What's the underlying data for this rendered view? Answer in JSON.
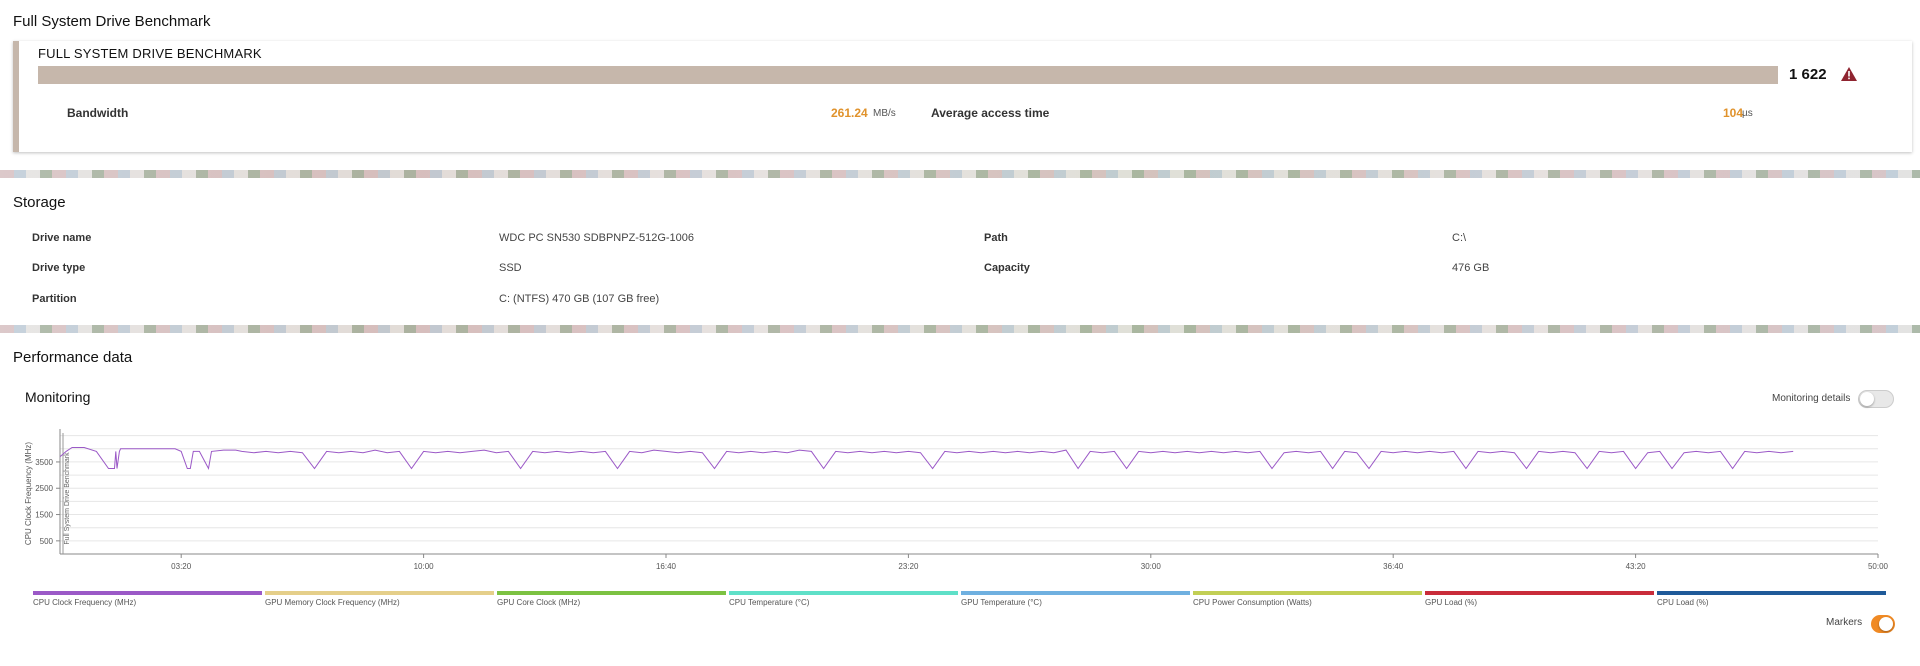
{
  "benchmark_section": {
    "title": "Full System Drive Benchmark",
    "card_title": "FULL SYSTEM DRIVE BENCHMARK",
    "score": "1 622",
    "bandwidth_label": "Bandwidth",
    "bandwidth_value": "261.24",
    "bandwidth_unit": "MB/s",
    "access_label": "Average access time",
    "access_value": "104",
    "access_unit": "µs",
    "warning_icon": "warning-triangle-icon",
    "accent_color": "#e0922b",
    "bar_color": "#c6b7ab"
  },
  "storage": {
    "title": "Storage",
    "rows": [
      {
        "label": "Drive name",
        "value": "WDC PC SN530 SDBPNPZ-512G-1006"
      },
      {
        "label": "Drive type",
        "value": "SSD"
      },
      {
        "label": "Partition",
        "value": "C: (NTFS) 470 GB (107 GB free)"
      },
      {
        "label": "Path",
        "value": "C:\\"
      },
      {
        "label": "Capacity",
        "value": "476 GB"
      }
    ]
  },
  "performance": {
    "title": "Performance data",
    "monitoring_title": "Monitoring",
    "monitoring_details_label": "Monitoring details",
    "monitoring_details_on": false,
    "markers_label": "Markers",
    "markers_on": true
  },
  "chart_data": {
    "type": "line",
    "ylabel": "CPU Clock Frequency (MHz)",
    "marker_label": "Full System Drive Benchmark",
    "y_ticks": [
      "500",
      "1500",
      "2500",
      "3500"
    ],
    "ylim": [
      0,
      4600
    ],
    "x_ticks": [
      "03:20",
      "10:00",
      "16:40",
      "23:20",
      "30:00",
      "36:40",
      "43:20",
      "50:00"
    ],
    "xlim_seconds": [
      0,
      3000
    ],
    "series": [
      {
        "name": "CPU Clock Frequency (MHz)",
        "color": "#9b59c7",
        "x": [
          0,
          10,
          20,
          40,
          60,
          80,
          90,
          92,
          94,
          98,
          100,
          110,
          130,
          150,
          170,
          190,
          200,
          210,
          215,
          220,
          230,
          245,
          250,
          270,
          290,
          300,
          320,
          340,
          360,
          380,
          400,
          420,
          440,
          460,
          480,
          500,
          520,
          540,
          560,
          580,
          600,
          620,
          640,
          660,
          680,
          700,
          720,
          740,
          760,
          780,
          800,
          820,
          840,
          860,
          880,
          900,
          920,
          940,
          960,
          980,
          1000,
          1020,
          1040,
          1060,
          1080,
          1100,
          1120,
          1140,
          1160,
          1180,
          1200,
          1220,
          1240,
          1260,
          1280,
          1300,
          1320,
          1340,
          1360,
          1380,
          1400,
          1420,
          1440,
          1460,
          1480,
          1500,
          1520,
          1540,
          1560,
          1580,
          1600,
          1620,
          1640,
          1660,
          1680,
          1700,
          1720,
          1740,
          1760,
          1780,
          1800,
          1820,
          1840,
          1860,
          1880,
          1900,
          1920,
          1940,
          1960,
          1980,
          2000,
          2020,
          2040,
          2060,
          2080,
          2100,
          2120,
          2140,
          2160,
          2180,
          2200,
          2220,
          2240,
          2260,
          2280,
          2300,
          2320,
          2340,
          2360,
          2380,
          2400,
          2420,
          2440,
          2460,
          2480,
          2500,
          2520,
          2540,
          2560,
          2580,
          2600,
          2620,
          2640,
          2660,
          2680,
          2700,
          2720,
          2740,
          2760,
          2780,
          2800,
          2820,
          2840,
          2860
        ],
        "values": [
          3700,
          3900,
          4050,
          4050,
          3900,
          3250,
          3250,
          3900,
          3250,
          3900,
          4000,
          4000,
          4000,
          4000,
          4000,
          4000,
          3900,
          3250,
          3250,
          3900,
          3900,
          3250,
          3900,
          3950,
          3950,
          3900,
          3850,
          3900,
          3850,
          3900,
          3850,
          3250,
          3900,
          3850,
          3900,
          3850,
          3950,
          3850,
          3900,
          3250,
          3900,
          3850,
          3900,
          3850,
          3900,
          3950,
          3850,
          3900,
          3250,
          3900,
          3850,
          3900,
          3850,
          3900,
          3850,
          3900,
          3250,
          3900,
          3850,
          3950,
          3900,
          3850,
          3900,
          3850,
          3250,
          3900,
          3850,
          3900,
          3850,
          3900,
          3850,
          3950,
          3900,
          3250,
          3900,
          3850,
          3900,
          3850,
          3900,
          3850,
          3900,
          3850,
          3250,
          3900,
          3850,
          3900,
          3850,
          3900,
          3850,
          3900,
          3850,
          3900,
          3850,
          3950,
          3250,
          3900,
          3850,
          3900,
          3250,
          3900,
          3850,
          3900,
          3850,
          3900,
          3850,
          3900,
          3850,
          3900,
          3850,
          3900,
          3250,
          3850,
          3900,
          3850,
          3900,
          3250,
          3900,
          3850,
          3250,
          3900,
          3850,
          3900,
          3850,
          3900,
          3850,
          3900,
          3250,
          3900,
          3850,
          3900,
          3850,
          3250,
          3900,
          3850,
          3900,
          3850,
          3250,
          3900,
          3850,
          3900,
          3250,
          3850,
          3900,
          3250,
          3850,
          3900,
          3850,
          3900,
          3250,
          3900,
          3850,
          3900,
          3850,
          3900
        ]
      }
    ],
    "legend": [
      {
        "name": "CPU Clock Frequency (MHz)",
        "color": "#9b59c7"
      },
      {
        "name": "GPU Memory Clock Frequency (MHz)",
        "color": "#e5cf8a"
      },
      {
        "name": "GPU Core Clock (MHz)",
        "color": "#7cc242"
      },
      {
        "name": "CPU Temperature (°C)",
        "color": "#5fe0c8"
      },
      {
        "name": "GPU Temperature (°C)",
        "color": "#6fb0e0"
      },
      {
        "name": "CPU Power Consumption (Watts)",
        "color": "#c2cf55"
      },
      {
        "name": "GPU Load (%)",
        "color": "#c92c3a"
      },
      {
        "name": "CPU Load (%)",
        "color": "#1f5a99"
      }
    ],
    "legend_placement": "bottom",
    "grid": true
  }
}
